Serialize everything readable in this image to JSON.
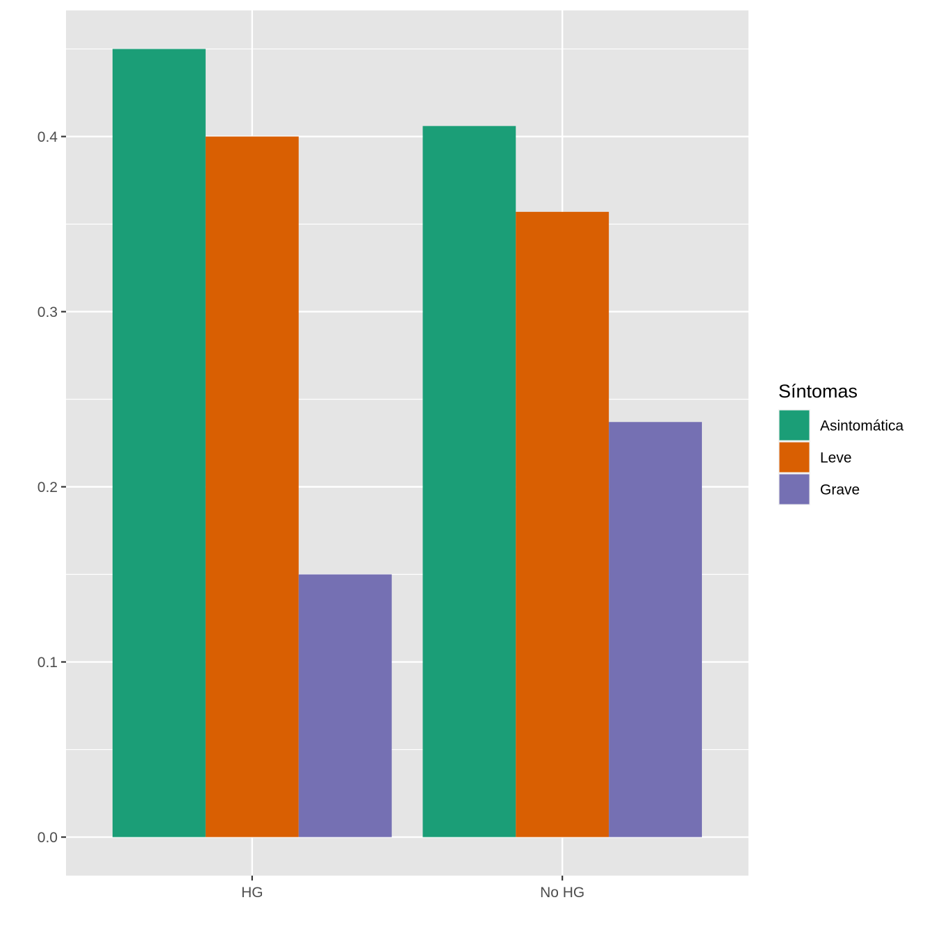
{
  "chart_data": {
    "type": "bar",
    "categories": [
      "HG",
      "No HG"
    ],
    "series": [
      {
        "name": "Asintomática",
        "values": [
          0.45,
          0.406
        ],
        "color": "#1B9E77"
      },
      {
        "name": "Leve",
        "values": [
          0.4,
          0.357
        ],
        "color": "#D95F02"
      },
      {
        "name": "Grave",
        "values": [
          0.15,
          0.237
        ],
        "color": "#7570B3"
      }
    ],
    "title": "",
    "xlabel": "",
    "ylabel": "",
    "ylim": [
      -0.022,
      0.472
    ],
    "yticks": [
      0.0,
      0.1,
      0.2,
      0.3,
      0.4
    ],
    "ytick_labels": [
      "0.0",
      "0.1",
      "0.2",
      "0.3",
      "0.4"
    ],
    "grid": true,
    "legend": {
      "title": "Síntomas",
      "position": "right"
    },
    "colors": {
      "panel": "#E5E5E5",
      "grid": "#FFFFFF",
      "axis_text": "#4D4D4D"
    }
  }
}
